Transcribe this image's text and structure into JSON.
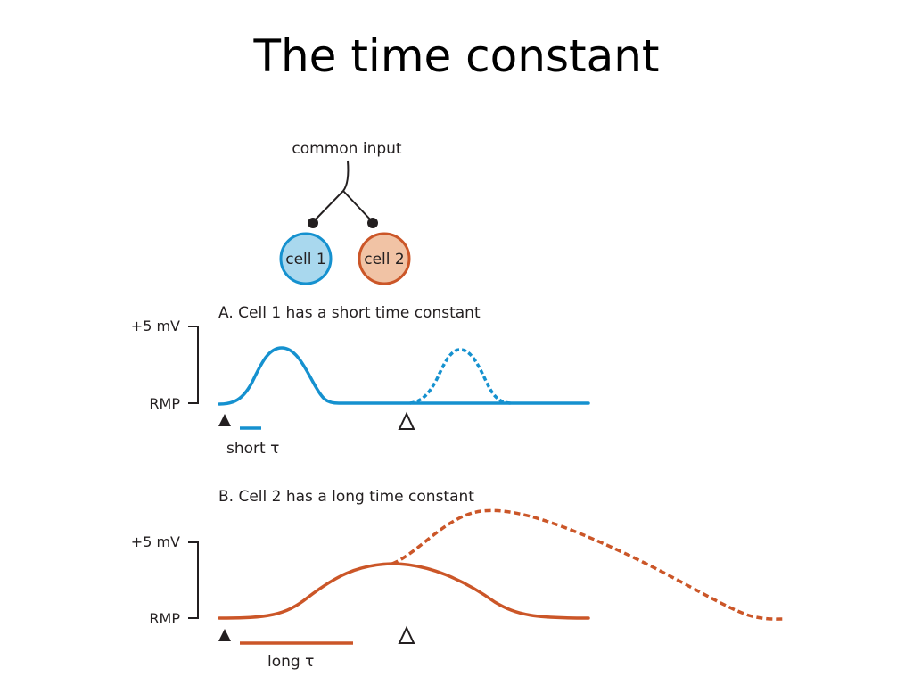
{
  "title": "The time constant",
  "input": {
    "label": "common input"
  },
  "cells": [
    {
      "label": "cell 1",
      "fill": "#a9d8ee",
      "stroke": "#1591cf"
    },
    {
      "label": "cell 2",
      "fill": "#f1c3a5",
      "stroke": "#cb5628"
    }
  ],
  "panel_a": {
    "label": "A. Cell 1 has a short time constant",
    "y_top_label": "+5 mV",
    "y_bottom_label": "RMP",
    "tau_label": "short τ",
    "color": "#1591cf"
  },
  "panel_b": {
    "label": "B. Cell 2 has a long time constant",
    "y_top_label": "+5 mV",
    "y_bottom_label": "RMP",
    "tau_label": "long τ",
    "color": "#cb5628"
  },
  "markers": {
    "stimulus_1": "▲",
    "stimulus_2": "Δ"
  }
}
